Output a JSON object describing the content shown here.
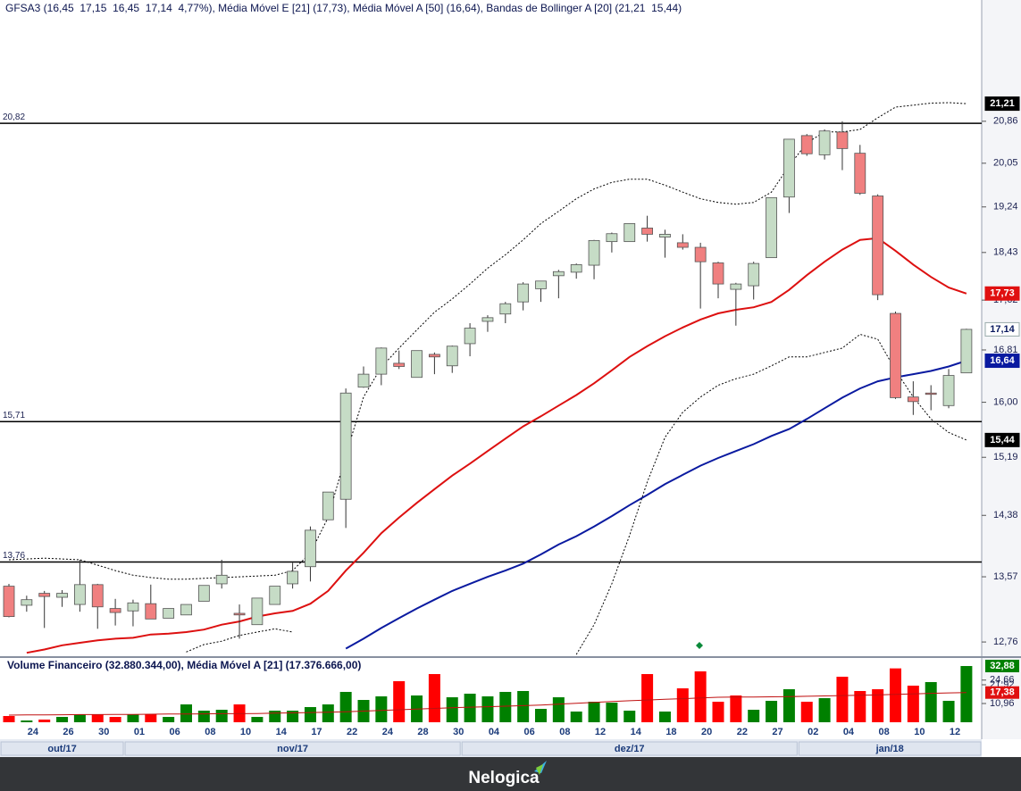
{
  "chart_data": [
    {
      "type": "candlestick",
      "legend": "GFSA3 (16,45  17,15  16,45  17,14  4,77%), Média Móvel E [21] (17,73), Média Móvel A [50] (16,64), Bandas de Bollinger A [20] (21,21  15,44)",
      "categories": [
        null,
        "24",
        null,
        "26",
        null,
        "30",
        null,
        "01",
        null,
        "06",
        null,
        "08",
        null,
        "10",
        null,
        "14",
        null,
        "17",
        null,
        "22",
        null,
        "24",
        null,
        "28",
        null,
        "30",
        null,
        "04",
        null,
        "06",
        null,
        "08",
        null,
        "12",
        null,
        "14",
        null,
        "18",
        null,
        "20",
        null,
        "22",
        null,
        "27",
        null,
        "02",
        null,
        "04",
        null,
        "08",
        null,
        "10",
        null,
        "12",
        null
      ],
      "months": [
        {
          "label": "out/17",
          "start": 0
        },
        {
          "label": "nov/17",
          "start": 7
        },
        {
          "label": "dez/17",
          "start": 26
        },
        {
          "label": "jan/18",
          "start": 45
        }
      ],
      "open": [
        13.45,
        13.21,
        13.36,
        13.31,
        13.22,
        13.47,
        13.17,
        13.14,
        13.23,
        13.05,
        13.09,
        13.26,
        13.48,
        13.11,
        12.97,
        13.22,
        13.48,
        13.7,
        14.32,
        14.6,
        16.23,
        16.43,
        16.6,
        16.38,
        16.74,
        16.56,
        16.91,
        17.27,
        17.39,
        17.59,
        17.81,
        18.03,
        18.09,
        18.21,
        18.62,
        18.62,
        18.86,
        18.7,
        18.6,
        18.52,
        18.25,
        17.8,
        17.86,
        18.34,
        19.42,
        20.58,
        20.21,
        20.65,
        20.24,
        19.44,
        17.4,
        16.08,
        16.14,
        15.95,
        16.45
      ],
      "high": [
        13.48,
        13.33,
        13.39,
        13.4,
        13.79,
        13.48,
        13.29,
        13.28,
        13.47,
        13.17,
        13.22,
        13.46,
        13.79,
        13.22,
        13.3,
        13.45,
        13.75,
        14.23,
        14.7,
        16.21,
        16.55,
        16.85,
        16.8,
        16.8,
        16.77,
        16.88,
        17.24,
        17.37,
        17.59,
        17.92,
        17.94,
        18.13,
        18.24,
        18.65,
        18.78,
        18.94,
        19.08,
        18.83,
        18.75,
        18.6,
        18.27,
        17.91,
        18.27,
        19.41,
        20.51,
        20.61,
        20.7,
        20.86,
        20.4,
        19.47,
        17.43,
        16.32,
        16.26,
        16.51,
        17.15
      ],
      "low": [
        13.06,
        13.13,
        12.93,
        13.19,
        13.13,
        12.92,
        12.96,
        12.95,
        13.04,
        13.05,
        13.09,
        13.26,
        13.42,
        12.8,
        12.97,
        13.22,
        13.42,
        13.51,
        14.32,
        14.21,
        16.22,
        16.26,
        16.51,
        16.38,
        16.43,
        16.45,
        16.71,
        17.1,
        17.24,
        17.45,
        17.59,
        17.65,
        17.98,
        17.97,
        18.43,
        18.62,
        18.62,
        18.34,
        18.48,
        17.48,
        17.65,
        17.2,
        17.63,
        18.34,
        19.13,
        20.19,
        20.12,
        19.92,
        19.46,
        17.62,
        16.05,
        15.81,
        15.88,
        15.91,
        16.45
      ],
      "close": [
        13.07,
        13.28,
        13.32,
        13.36,
        13.47,
        13.19,
        13.12,
        13.24,
        13.04,
        13.17,
        13.22,
        13.46,
        13.59,
        13.09,
        13.3,
        13.45,
        13.64,
        14.18,
        14.7,
        16.14,
        16.43,
        16.84,
        16.55,
        16.8,
        16.7,
        16.87,
        17.16,
        17.33,
        17.56,
        17.89,
        17.94,
        18.1,
        18.22,
        18.64,
        18.76,
        18.94,
        18.75,
        18.75,
        18.52,
        18.27,
        17.89,
        17.89,
        18.24,
        19.41,
        20.51,
        20.23,
        20.67,
        20.33,
        19.49,
        17.71,
        16.07,
        16.01,
        16.12,
        16.41,
        17.14
      ],
      "up_color": "#c6dcc6",
      "down_color": "#f08080",
      "series": [
        {
          "color": "#dd1010",
          "dash": false,
          "values": [
            null,
            12.63,
            12.67,
            12.72,
            12.75,
            12.78,
            12.8,
            12.81,
            12.85,
            12.86,
            12.88,
            12.91,
            12.97,
            13.01,
            13.07,
            13.11,
            13.14,
            13.23,
            13.39,
            13.65,
            13.88,
            14.14,
            14.35,
            14.55,
            14.74,
            14.93,
            15.1,
            15.28,
            15.46,
            15.64,
            15.79,
            15.95,
            16.11,
            16.29,
            16.49,
            16.7,
            16.87,
            17.03,
            17.17,
            17.3,
            17.4,
            17.46,
            17.5,
            17.59,
            17.79,
            18.04,
            18.27,
            18.48,
            18.65,
            18.68,
            18.46,
            18.22,
            18.01,
            17.83,
            17.73
          ]
        },
        {
          "color": "#0a1aa0",
          "dash": false,
          "values": [
            null,
            null,
            null,
            null,
            null,
            null,
            null,
            null,
            null,
            null,
            null,
            null,
            null,
            null,
            null,
            null,
            null,
            null,
            null,
            12.68,
            12.8,
            12.93,
            13.05,
            13.17,
            13.28,
            13.39,
            13.48,
            13.57,
            13.65,
            13.74,
            13.86,
            13.99,
            14.1,
            14.23,
            14.37,
            14.52,
            14.66,
            14.81,
            14.94,
            15.07,
            15.18,
            15.28,
            15.38,
            15.5,
            15.6,
            15.75,
            15.91,
            16.07,
            16.21,
            16.32,
            16.38,
            16.43,
            16.48,
            16.55,
            16.64
          ]
        },
        {
          "color": "#000000",
          "dash": true,
          "values": [
            13.79,
            13.8,
            13.81,
            13.8,
            13.79,
            13.72,
            13.65,
            13.59,
            13.56,
            13.54,
            13.54,
            13.55,
            13.56,
            13.57,
            13.58,
            13.59,
            13.65,
            13.88,
            14.35,
            15.22,
            16.08,
            16.54,
            16.84,
            17.13,
            17.42,
            17.64,
            17.89,
            18.16,
            18.39,
            18.65,
            18.94,
            19.16,
            19.39,
            19.57,
            19.69,
            19.75,
            19.75,
            19.64,
            19.51,
            19.39,
            19.32,
            19.29,
            19.32,
            19.51,
            20.0,
            20.44,
            20.65,
            20.65,
            20.7,
            20.93,
            21.14,
            21.18,
            21.22,
            21.23,
            21.21
          ]
        },
        {
          "color": "#000000",
          "dash": true,
          "values": [
            null,
            null,
            null,
            null,
            null,
            null,
            null,
            null,
            null,
            null,
            12.64,
            12.73,
            12.77,
            12.84,
            12.88,
            12.92,
            12.88,
            null,
            null,
            null,
            null,
            null,
            null,
            null,
            null,
            null,
            null,
            null,
            null,
            null,
            null,
            null,
            12.61,
            12.97,
            13.48,
            14.11,
            14.84,
            15.48,
            15.85,
            16.08,
            16.26,
            16.36,
            16.43,
            16.56,
            16.7,
            16.7,
            16.77,
            16.84,
            17.06,
            16.98,
            16.49,
            16.08,
            15.75,
            15.55,
            15.44
          ]
        }
      ],
      "log_scale": true,
      "ylim": [
        12.59,
        23.39
      ],
      "yticks": [
        {
          "value": 20.86,
          "label": "20,86"
        },
        {
          "value": 20.05,
          "label": "20,05"
        },
        {
          "value": 19.24,
          "label": "19,24"
        },
        {
          "value": 18.43,
          "label": "18,43"
        },
        {
          "value": 17.62,
          "label": "17,62"
        },
        {
          "value": 16.81,
          "label": "16,81"
        },
        {
          "value": 16,
          "label": "16,00"
        },
        {
          "value": 15.19,
          "label": "15,19"
        },
        {
          "value": 14.38,
          "label": "14,38"
        },
        {
          "value": 13.57,
          "label": "13,57"
        },
        {
          "value": 12.76,
          "label": "12,76"
        }
      ],
      "levels": [
        {
          "value": 20.82,
          "label": "20,82"
        },
        {
          "value": 15.71,
          "label": "15,71"
        },
        {
          "value": 13.76,
          "label": "13,76"
        }
      ],
      "tags": [
        {
          "value": 21.21,
          "label": "21,21",
          "color": "#000000",
          "text_color": "#ffffff"
        },
        {
          "value": 17.73,
          "label": "17,73",
          "color": "#e01010",
          "text_color": "#ffffff"
        },
        {
          "value": 17.14,
          "label": "17,14",
          "color": "#ffffff",
          "text_color": "#0a1a60"
        },
        {
          "value": 16.64,
          "label": "16,64",
          "color": "#0a1aa0",
          "text_color": "#ffffff"
        },
        {
          "value": 15.44,
          "label": "15,44",
          "color": "#000000",
          "text_color": "#ffffff"
        }
      ]
    },
    {
      "type": "bar",
      "title": "Volume Financeiro (32.880.344,00), Média Móvel A [21] (17.376.666,00)",
      "values": [
        3.65,
        1.04,
        1.57,
        3.13,
        4.7,
        4.7,
        3.13,
        4.7,
        4.7,
        3.13,
        10.44,
        6.78,
        7.31,
        10.44,
        3.13,
        6.78,
        6.78,
        8.87,
        10.44,
        17.75,
        13.05,
        15.14,
        24.01,
        15.66,
        28.18,
        14.61,
        16.7,
        15.14,
        17.75,
        18.27,
        7.83,
        14.61,
        6.26,
        12.0,
        11.48,
        6.78,
        28.18,
        6.26,
        19.83,
        29.75,
        12.0,
        15.66,
        7.31,
        12.53,
        19.31,
        12.0,
        14.09,
        26.62,
        18.27,
        19.31,
        31.5,
        21.4,
        23.49,
        12.53,
        32.88
      ],
      "colors": [
        "#ff0000",
        "#008000",
        "#ff0000",
        "#008000",
        "#008000",
        "#ff0000",
        "#ff0000",
        "#008000",
        "#ff0000",
        "#008000",
        "#008000",
        "#008000",
        "#008000",
        "#ff0000",
        "#008000",
        "#008000",
        "#008000",
        "#008000",
        "#008000",
        "#008000",
        "#008000",
        "#008000",
        "#ff0000",
        "#008000",
        "#ff0000",
        "#008000",
        "#008000",
        "#008000",
        "#008000",
        "#008000",
        "#008000",
        "#008000",
        "#008000",
        "#008000",
        "#008000",
        "#008000",
        "#ff0000",
        "#008000",
        "#ff0000",
        "#ff0000",
        "#ff0000",
        "#ff0000",
        "#008000",
        "#008000",
        "#008000",
        "#ff0000",
        "#008000",
        "#ff0000",
        "#ff0000",
        "#ff0000",
        "#ff0000",
        "#ff0000",
        "#008000",
        "#008000",
        "#008000"
      ],
      "ma": {
        "color": "#c01010",
        "values": [
          4.2,
          4.3,
          4.3,
          4.4,
          4.5,
          4.5,
          4.6,
          4.6,
          4.7,
          4.8,
          4.8,
          4.9,
          5.0,
          5.0,
          5.1,
          5.3,
          5.5,
          5.7,
          5.9,
          6.1,
          6.5,
          6.9,
          7.3,
          7.7,
          8.1,
          8.5,
          8.8,
          9.1,
          9.4,
          9.7,
          10.1,
          10.6,
          11.1,
          11.6,
          12.1,
          12.6,
          13.0,
          13.4,
          13.8,
          14.2,
          14.6,
          14.7,
          14.8,
          14.9,
          15.0,
          15.2,
          15.4,
          15.6,
          15.8,
          16.0,
          16.3,
          16.6,
          16.9,
          17.2,
          17.38
        ]
      },
      "ylim": [
        0,
        35.5
      ],
      "yticks": [
        {
          "value": 24.66,
          "label": "24,66"
        },
        {
          "value": 21.92,
          "label": "21,92"
        },
        {
          "value": 10.96,
          "label": "10,96"
        }
      ],
      "tags": [
        {
          "value": 32.88,
          "label": "32,88",
          "color": "#008000",
          "text_color": "#ffffff"
        },
        {
          "value": 17.38,
          "label": "17,38",
          "color": "#e01010",
          "text_color": "#ffffff"
        }
      ]
    }
  ],
  "footer": {
    "brand": "Nelogica"
  }
}
